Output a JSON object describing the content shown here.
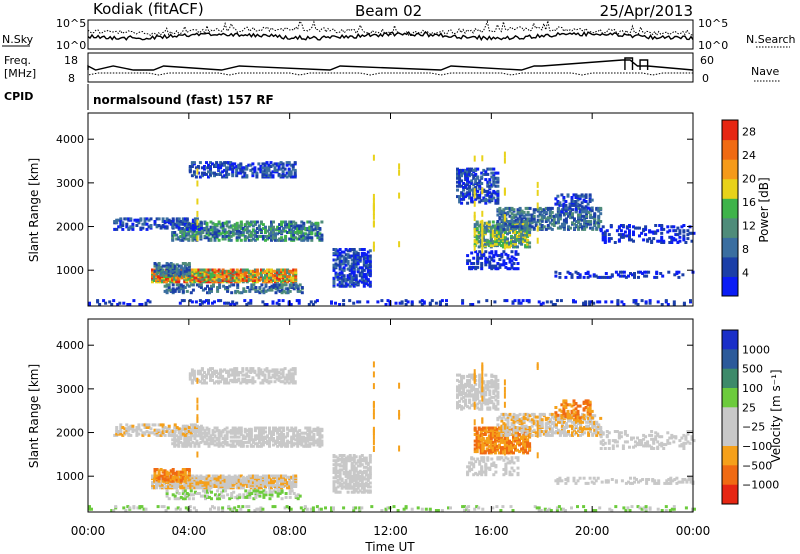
{
  "header": {
    "station": "Kodiak (fitACF)",
    "beam": "Beam 02",
    "date": "25/Apr/2013"
  },
  "noise_panel": {
    "left_label": "N.Sky",
    "right_label": "N.Search",
    "tick_top": "10^5",
    "tick_bottom": "10^0"
  },
  "freq_panel": {
    "left_label_line1": "Freq.",
    "left_label_line2": "[MHz]",
    "left_ticks": [
      "18",
      "8"
    ],
    "right_ticks": [
      "60",
      "0"
    ],
    "right_label": "Nave"
  },
  "cpid": {
    "label": "CPID",
    "value": "normalsound (fast) 157 RF"
  },
  "colors": {
    "power": [
      "#0a1cf5",
      "#1b3fa8",
      "#3a6ea0",
      "#4f8c7a",
      "#3fb34a",
      "#e8d21a",
      "#f59a1a",
      "#f06a12",
      "#e62612"
    ],
    "velocity": [
      "#1a2fc8",
      "#2c5a9a",
      "#3d8a6a",
      "#6ccb3c",
      "#c8c8c8",
      "#c8c8c8",
      "#f5a01a",
      "#f06a12",
      "#e62612"
    ]
  },
  "chart_data": [
    {
      "type": "heatmap",
      "name": "power",
      "ylabel": "Slant Range [km]",
      "ylim": [
        180,
        4600
      ],
      "yticks": [
        "1000",
        "2000",
        "3000",
        "4000"
      ],
      "xlim": [
        0,
        24
      ],
      "colorbar_label": "Power [dB]",
      "colorbar_ticks": [
        "4",
        "8",
        "12",
        "16",
        "20",
        "24",
        "28"
      ],
      "colorbar_range": [
        0,
        30
      ]
    },
    {
      "type": "heatmap",
      "name": "velocity",
      "ylabel": "Slant Range [km]",
      "ylim": [
        180,
        4600
      ],
      "yticks": [
        "1000",
        "2000",
        "3000",
        "4000"
      ],
      "xlim": [
        0,
        24
      ],
      "colorbar_label": "Velocity [m s⁻¹]",
      "colorbar_ticks": [
        "1000",
        "500",
        "100",
        "25",
        "−25",
        "−100",
        "−500",
        "−1000"
      ]
    }
  ],
  "x_axis": {
    "ticks": [
      "00:00",
      "04:00",
      "08:00",
      "12:00",
      "16:00",
      "20:00",
      "00:00"
    ],
    "label": "Time UT"
  }
}
